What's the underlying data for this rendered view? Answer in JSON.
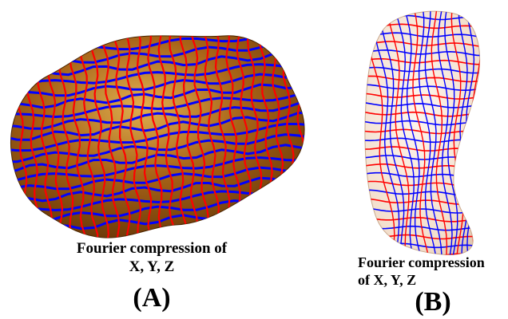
{
  "panels": [
    {
      "id": "A",
      "caption_line1": "Fourier compression of",
      "caption_line2": "X, Y, Z",
      "label": "(A)"
    },
    {
      "id": "B",
      "caption_line1": "Fourier compression",
      "caption_line2": "of X, Y, Z",
      "label": "(B)"
    }
  ],
  "colors": {
    "surface_a": "#8a4a08",
    "surface_a_highlight": "#e0b050",
    "surface_b": "#f6e6d6",
    "curve_red": "#ff0000",
    "curve_blue": "#0000ff"
  }
}
